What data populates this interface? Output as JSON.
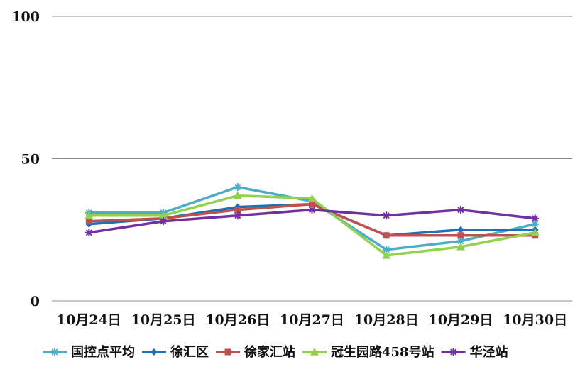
{
  "chart_data": {
    "type": "line",
    "categories": [
      "10月24日",
      "10月25日",
      "10月26日",
      "10月27日",
      "10月28日",
      "10月29日",
      "10月30日"
    ],
    "ylim": [
      0,
      100
    ],
    "yticks": [
      0,
      50,
      100
    ],
    "grid": true,
    "legend_position": "bottom",
    "series": [
      {
        "name": "国控点平均",
        "color": "#4bacc6",
        "marker": "star",
        "values": [
          31,
          31,
          40,
          35,
          18,
          21,
          27
        ]
      },
      {
        "name": "徐汇区",
        "color": "#1f6fb4",
        "marker": "diamond",
        "values": [
          27,
          29,
          33,
          34,
          23,
          25,
          25
        ]
      },
      {
        "name": "徐家汇站",
        "color": "#c0504d",
        "marker": "square",
        "values": [
          28,
          29,
          32,
          34,
          23,
          23,
          23
        ]
      },
      {
        "name": "冠生园路458号站",
        "color": "#92d050",
        "marker": "triangle",
        "values": [
          30,
          30,
          37,
          36,
          16,
          19,
          24
        ]
      },
      {
        "name": "华泾站",
        "color": "#7030a0",
        "marker": "star",
        "values": [
          24,
          28,
          30,
          32,
          30,
          32,
          29
        ]
      }
    ]
  }
}
